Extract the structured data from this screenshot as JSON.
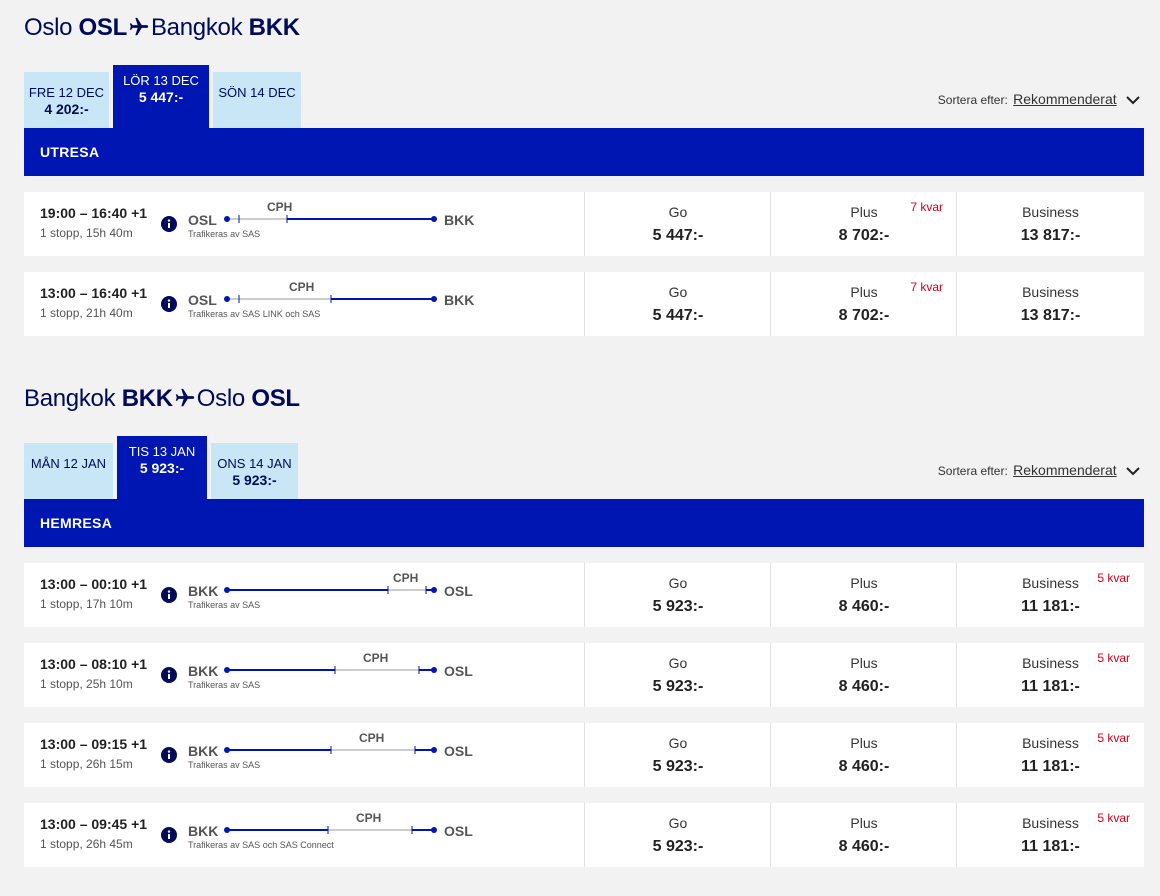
{
  "outbound": {
    "from_city": "Oslo",
    "from_code": "OSL",
    "to_city": "Bangkok",
    "to_code": "BKK",
    "tabs": [
      {
        "date": "FRE 12 DEC",
        "price": "4 202:-"
      },
      {
        "date": "LÖR 13 DEC",
        "price": "5 447:-"
      },
      {
        "date": "SÖN 14 DEC",
        "price": ""
      }
    ],
    "sort_label": "Sortera efter:",
    "sort_value": "Rekommenderat",
    "bar_label": "UTRESA",
    "flights": [
      {
        "times": "19:00 – 16:40 +1",
        "duration": "1 stopp, 15h 40m",
        "origin": "OSL",
        "via": "CPH",
        "dest": "BKK",
        "operator": "Trafikeras av SAS",
        "stop_frac": 0.29,
        "fares": [
          {
            "name": "Go",
            "price": "5 447:-",
            "seats": ""
          },
          {
            "name": "Plus",
            "price": "8 702:-",
            "seats": "7 kvar"
          },
          {
            "name": "Business",
            "price": "13 817:-",
            "seats": ""
          }
        ]
      },
      {
        "times": "13:00 – 16:40 +1",
        "duration": "1 stopp, 21h 40m",
        "origin": "OSL",
        "via": "CPH",
        "dest": "BKK",
        "operator": "Trafikeras av SAS LINK och SAS",
        "stop_frac": 0.5,
        "fares": [
          {
            "name": "Go",
            "price": "5 447:-",
            "seats": ""
          },
          {
            "name": "Plus",
            "price": "8 702:-",
            "seats": "7 kvar"
          },
          {
            "name": "Business",
            "price": "13 817:-",
            "seats": ""
          }
        ]
      }
    ]
  },
  "return": {
    "from_city": "Bangkok",
    "from_code": "BKK",
    "to_city": "Oslo",
    "to_code": "OSL",
    "tabs": [
      {
        "date": "MÅN 12 JAN",
        "price": ""
      },
      {
        "date": "TIS 13 JAN",
        "price": "5 923:-"
      },
      {
        "date": "ONS 14 JAN",
        "price": "5 923:-"
      }
    ],
    "sort_label": "Sortera efter:",
    "sort_value": "Rekommenderat",
    "bar_label": "HEMRESA",
    "flights": [
      {
        "times": "13:00 – 00:10 +1",
        "duration": "1 stopp, 17h 10m",
        "origin": "BKK",
        "via": "CPH",
        "dest": "OSL",
        "operator": "Trafikeras av SAS",
        "stop_frac": 0.78,
        "fares": [
          {
            "name": "Go",
            "price": "5 923:-",
            "seats": ""
          },
          {
            "name": "Plus",
            "price": "8 460:-",
            "seats": ""
          },
          {
            "name": "Business",
            "price": "11 181:-",
            "seats": "5 kvar"
          }
        ]
      },
      {
        "times": "13:00 – 08:10 +1",
        "duration": "1 stopp, 25h 10m",
        "origin": "BKK",
        "via": "CPH",
        "dest": "OSL",
        "operator": "Trafikeras av SAS",
        "stop_frac": 0.52,
        "fares": [
          {
            "name": "Go",
            "price": "5 923:-",
            "seats": ""
          },
          {
            "name": "Plus",
            "price": "8 460:-",
            "seats": ""
          },
          {
            "name": "Business",
            "price": "11 181:-",
            "seats": "5 kvar"
          }
        ]
      },
      {
        "times": "13:00 – 09:15 +1",
        "duration": "1 stopp, 26h 15m",
        "origin": "BKK",
        "via": "CPH",
        "dest": "OSL",
        "operator": "Trafikeras av SAS",
        "stop_frac": 0.5,
        "fares": [
          {
            "name": "Go",
            "price": "5 923:-",
            "seats": ""
          },
          {
            "name": "Plus",
            "price": "8 460:-",
            "seats": ""
          },
          {
            "name": "Business",
            "price": "11 181:-",
            "seats": "5 kvar"
          }
        ]
      },
      {
        "times": "13:00 – 09:45 +1",
        "duration": "1 stopp, 26h 45m",
        "origin": "BKK",
        "via": "CPH",
        "dest": "OSL",
        "operator": "Trafikeras av SAS och SAS Connect",
        "stop_frac": 0.49,
        "fares": [
          {
            "name": "Go",
            "price": "5 923:-",
            "seats": ""
          },
          {
            "name": "Plus",
            "price": "8 460:-",
            "seats": ""
          },
          {
            "name": "Business",
            "price": "11 181:-",
            "seats": "5 kvar"
          }
        ]
      }
    ]
  },
  "colors": {
    "brand_blue": "#0016b2",
    "navy": "#000a5a",
    "tab_inactive": "#c8e6f6",
    "seats_red": "#d0021b"
  }
}
